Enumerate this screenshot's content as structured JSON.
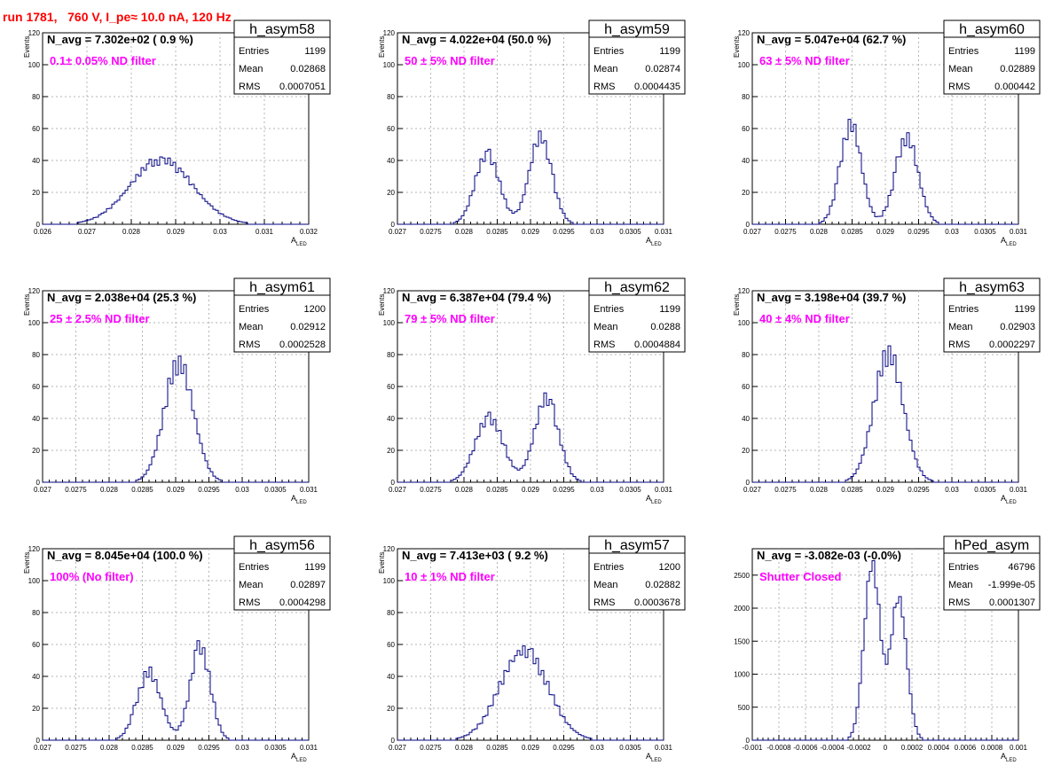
{
  "header": {
    "run_title": "run 1781,   760 V, I_pe≈ 10.0 nA, 120 Hz"
  },
  "colors": {
    "histogram": "#000080",
    "annotation": "#ff00ff",
    "title": "#ff0000",
    "grid": "#b4b4b4"
  },
  "chart_data": [
    {
      "type": "histogram",
      "name": "h_asym58",
      "n_avg_text": "N_avg = 7.302e+02 ( 0.9 %)",
      "annotation": "0.1± 0.05% ND filter",
      "stats": [
        [
          "Entries",
          "1199"
        ],
        [
          "Mean",
          "0.02868"
        ],
        [
          "RMS",
          "0.0007051"
        ]
      ],
      "xlabel": "A",
      "xlabel_sub": "LED",
      "ylabel": "Events",
      "xlim": [
        0.026,
        0.032
      ],
      "ylim": [
        0,
        120
      ],
      "xticks": [
        "0.026",
        "0.027",
        "0.028",
        "0.029",
        "0.03",
        "0.031",
        "0.032"
      ],
      "yticks": [
        "0",
        "20",
        "40",
        "60",
        "80",
        "100",
        "120"
      ],
      "grid": true,
      "peaks": [
        {
          "mu": 0.02868,
          "sigma": 0.0007051,
          "height": 40
        }
      ],
      "noise": [
        0,
        0,
        1,
        3,
        -2,
        4,
        -3,
        5,
        -2,
        3,
        6,
        -4,
        2,
        -5,
        4,
        3,
        -3,
        5,
        -2,
        4,
        -6,
        3,
        2,
        -2,
        5,
        -4,
        3,
        1,
        -2,
        2
      ]
    },
    {
      "type": "histogram",
      "name": "h_asym59",
      "n_avg_text": "N_avg = 4.022e+04 (50.0 %)",
      "annotation": "50 ± 5% ND filter",
      "stats": [
        [
          "Entries",
          "1199"
        ],
        [
          "Mean",
          "0.02874"
        ],
        [
          "RMS",
          "0.0004435"
        ]
      ],
      "xlabel": "A",
      "xlabel_sub": "LED",
      "ylabel": "Events",
      "xlim": [
        0.027,
        0.031
      ],
      "ylim": [
        0,
        120
      ],
      "xticks": [
        "0.027",
        "0.0275",
        "0.028",
        "0.0285",
        "0.029",
        "0.0295",
        "0.03",
        "0.0305",
        "0.031"
      ],
      "yticks": [
        "0",
        "20",
        "40",
        "60",
        "80",
        "100",
        "120"
      ],
      "grid": true,
      "peaks": [
        {
          "mu": 0.02835,
          "sigma": 0.00018,
          "height": 44
        },
        {
          "mu": 0.02915,
          "sigma": 0.00017,
          "height": 54
        }
      ],
      "noise": [
        0,
        2,
        -3,
        5,
        -4,
        6,
        -3,
        4,
        -5,
        3,
        6,
        -6,
        4,
        -4,
        5,
        -3,
        6,
        -5,
        4,
        -2,
        3,
        -4,
        2,
        -1
      ]
    },
    {
      "type": "histogram",
      "name": "h_asym60",
      "n_avg_text": "N_avg = 5.047e+04 (62.7 %)",
      "annotation": "63 ± 5% ND filter",
      "stats": [
        [
          "Entries",
          "1199"
        ],
        [
          "Mean",
          "0.02889"
        ],
        [
          "RMS",
          "0.000442"
        ]
      ],
      "xlabel": "A",
      "xlabel_sub": "LED",
      "ylabel": "Events",
      "xlim": [
        0.027,
        0.031
      ],
      "ylim": [
        0,
        120
      ],
      "xticks": [
        "0.027",
        "0.0275",
        "0.028",
        "0.0285",
        "0.029",
        "0.0295",
        "0.03",
        "0.0305",
        "0.031"
      ],
      "yticks": [
        "0",
        "20",
        "40",
        "60",
        "80",
        "100",
        "120"
      ],
      "grid": true,
      "peaks": [
        {
          "mu": 0.02848,
          "sigma": 0.00016,
          "height": 62
        },
        {
          "mu": 0.02932,
          "sigma": 0.00017,
          "height": 54
        }
      ],
      "noise": [
        0,
        3,
        -4,
        6,
        -5,
        8,
        -4,
        5,
        -6,
        4,
        7,
        -5,
        4,
        -6,
        5,
        -4,
        6,
        -3,
        4,
        -2,
        3,
        -2
      ]
    },
    {
      "type": "histogram",
      "name": "h_asym61",
      "n_avg_text": "N_avg = 2.038e+04 (25.3 %)",
      "annotation": "25 ± 2.5% ND filter",
      "stats": [
        [
          "Entries",
          "1200"
        ],
        [
          "Mean",
          "0.02912"
        ],
        [
          "RMS",
          "0.0002528"
        ]
      ],
      "xlabel": "A",
      "xlabel_sub": "LED",
      "ylabel": "Events",
      "xlim": [
        0.027,
        0.031
      ],
      "ylim": [
        0,
        120
      ],
      "xticks": [
        "0.027",
        "0.0275",
        "0.028",
        "0.0285",
        "0.029",
        "0.0295",
        "0.03",
        "0.0305",
        "0.031"
      ],
      "yticks": [
        "0",
        "20",
        "40",
        "60",
        "80",
        "100",
        "120"
      ],
      "grid": true,
      "peaks": [
        {
          "mu": 0.02905,
          "sigma": 0.00022,
          "height": 74
        }
      ],
      "noise": [
        0,
        2,
        -3,
        5,
        -4,
        6,
        -5,
        8,
        -4,
        6,
        -6,
        5,
        -4,
        6,
        -5,
        4,
        -3,
        2,
        -2,
        1
      ]
    },
    {
      "type": "histogram",
      "name": "h_asym62",
      "n_avg_text": "N_avg = 6.387e+04 (79.4 %)",
      "annotation": "79 ± 5% ND filter",
      "stats": [
        [
          "Entries",
          "1199"
        ],
        [
          "Mean",
          "0.0288"
        ],
        [
          "RMS",
          "0.0004884"
        ]
      ],
      "xlabel": "A",
      "xlabel_sub": "LED",
      "ylabel": "Events",
      "xlim": [
        0.027,
        0.031
      ],
      "ylim": [
        0,
        120
      ],
      "xticks": [
        "0.027",
        "0.0275",
        "0.028",
        "0.0285",
        "0.029",
        "0.0295",
        "0.03",
        "0.0305",
        "0.031"
      ],
      "yticks": [
        "0",
        "20",
        "40",
        "60",
        "80",
        "100",
        "120"
      ],
      "grid": true,
      "peaks": [
        {
          "mu": 0.02838,
          "sigma": 0.00021,
          "height": 40
        },
        {
          "mu": 0.02924,
          "sigma": 0.00018,
          "height": 52
        }
      ],
      "noise": [
        0,
        2,
        -3,
        4,
        -4,
        5,
        -3,
        6,
        -5,
        4,
        7,
        -6,
        4,
        -4,
        6,
        -4,
        8,
        -5,
        4,
        -3,
        3,
        -2,
        2,
        -1
      ]
    },
    {
      "type": "histogram",
      "name": "h_asym63",
      "n_avg_text": "N_avg = 3.198e+04 (39.7 %)",
      "annotation": "40 ± 4% ND filter",
      "stats": [
        [
          "Entries",
          "1199"
        ],
        [
          "Mean",
          "0.02903"
        ],
        [
          "RMS",
          "0.0002297"
        ]
      ],
      "xlabel": "A",
      "xlabel_sub": "LED",
      "ylabel": "Events",
      "xlim": [
        0.027,
        0.031
      ],
      "ylim": [
        0,
        120
      ],
      "xticks": [
        "0.027",
        "0.0275",
        "0.028",
        "0.0285",
        "0.029",
        "0.0295",
        "0.03",
        "0.0305",
        "0.031"
      ],
      "yticks": [
        "0",
        "20",
        "40",
        "60",
        "80",
        "100",
        "120"
      ],
      "grid": true,
      "peaks": [
        {
          "mu": 0.02905,
          "sigma": 0.00022,
          "height": 80
        }
      ],
      "noise": [
        0,
        2,
        -3,
        5,
        -4,
        6,
        -5,
        7,
        -4,
        6,
        -6,
        5,
        -4,
        6,
        -5,
        4,
        -3,
        2,
        -2,
        1
      ]
    },
    {
      "type": "histogram",
      "name": "h_asym56",
      "n_avg_text": "N_avg = 8.045e+04 (100.0 %)",
      "annotation": "100% (No filter)",
      "stats": [
        [
          "Entries",
          "1199"
        ],
        [
          "Mean",
          "0.02897"
        ],
        [
          "RMS",
          "0.0004298"
        ]
      ],
      "xlabel": "A",
      "xlabel_sub": "LED",
      "ylabel": "Events",
      "xlim": [
        0.027,
        0.031
      ],
      "ylim": [
        0,
        120
      ],
      "xticks": [
        "0.027",
        "0.0275",
        "0.028",
        "0.0285",
        "0.029",
        "0.0295",
        "0.03",
        "0.0305",
        "0.031"
      ],
      "yticks": [
        "0",
        "20",
        "40",
        "60",
        "80",
        "100",
        "120"
      ],
      "grid": true,
      "peaks": [
        {
          "mu": 0.0286,
          "sigma": 0.00018,
          "height": 42
        },
        {
          "mu": 0.02937,
          "sigma": 0.00015,
          "height": 58
        }
      ],
      "noise": [
        0,
        2,
        -3,
        4,
        -4,
        6,
        -5,
        5,
        -4,
        6,
        7,
        -5,
        4,
        -6,
        6,
        -4,
        7,
        -5,
        4,
        -3,
        3,
        -2,
        2,
        -1
      ]
    },
    {
      "type": "histogram",
      "name": "h_asym57",
      "n_avg_text": "N_avg = 7.413e+03 ( 9.2 %)",
      "annotation": "10 ± 1% ND filter",
      "stats": [
        [
          "Entries",
          "1200"
        ],
        [
          "Mean",
          "0.02882"
        ],
        [
          "RMS",
          "0.0003678"
        ]
      ],
      "xlabel": "A",
      "xlabel_sub": "LED",
      "ylabel": "Events",
      "xlim": [
        0.027,
        0.031
      ],
      "ylim": [
        0,
        120
      ],
      "xticks": [
        "0.027",
        "0.0275",
        "0.028",
        "0.0285",
        "0.029",
        "0.0295",
        "0.03",
        "0.0305",
        "0.031"
      ],
      "yticks": [
        "0",
        "20",
        "40",
        "60",
        "80",
        "100",
        "120"
      ],
      "grid": true,
      "peaks": [
        {
          "mu": 0.0289,
          "sigma": 0.00036,
          "height": 56
        }
      ],
      "noise": [
        0,
        2,
        -3,
        4,
        -5,
        3,
        6,
        -4,
        5,
        -6,
        4,
        -5,
        6,
        -4,
        5,
        -3,
        6,
        -5,
        4,
        -3,
        3,
        -2
      ]
    },
    {
      "type": "histogram",
      "name": "hPed_asym",
      "n_avg_text": "N_avg = -3.082e-03 (-0.0%)",
      "annotation": "Shutter Closed",
      "stats": [
        [
          "Entries",
          "46796"
        ],
        [
          "Mean",
          "-1.999e-05"
        ],
        [
          "RMS",
          "0.0001307"
        ]
      ],
      "xlabel": "A",
      "xlabel_sub": "LED",
      "ylabel": "",
      "xlim": [
        -0.001,
        0.001
      ],
      "ylim": [
        0,
        2900
      ],
      "xticks": [
        "-0.001",
        "-0.0008",
        "-0.0006",
        "-0.0004",
        "-0.0002",
        "0",
        "0.0002",
        "0.0004",
        "0.0006",
        "0.0008",
        "0.001"
      ],
      "yticks": [
        "0",
        "500",
        "1000",
        "1500",
        "2000",
        "2500"
      ],
      "ytick_values": [
        0,
        500,
        1000,
        1500,
        2000,
        2500
      ],
      "grid": true,
      "peaks": [
        {
          "mu": -0.0001,
          "sigma": 6e-05,
          "height": 2650
        },
        {
          "mu": 0.0001,
          "sigma": 6e-05,
          "height": 2150
        }
      ],
      "noise": [
        0,
        20,
        -30,
        50,
        -40,
        60,
        -50,
        80,
        -40,
        60,
        -60,
        50,
        -40,
        60,
        -50,
        40,
        -30,
        20,
        -20,
        10
      ]
    }
  ]
}
